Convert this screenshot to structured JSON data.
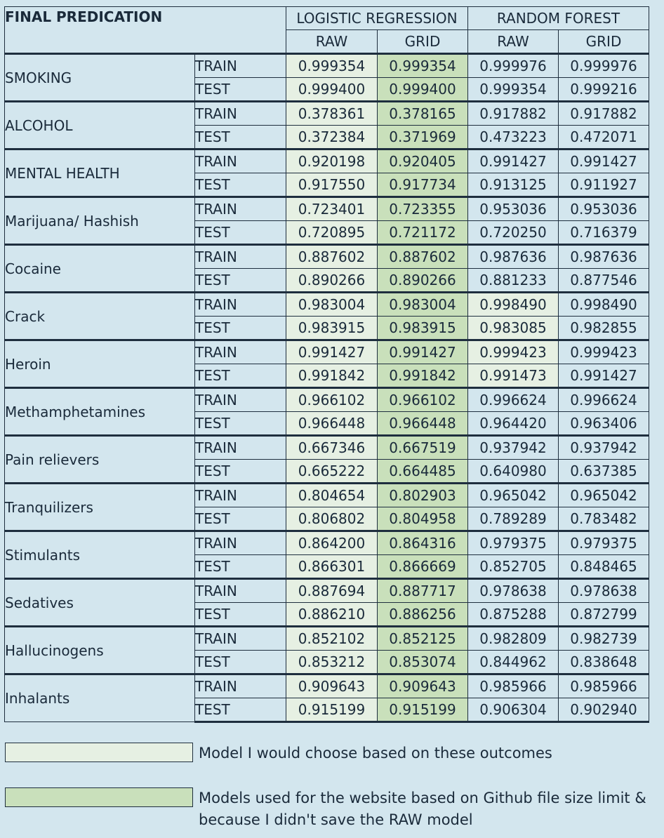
{
  "header": {
    "title": "FINAL PREDICATION",
    "groups": [
      "LOGISTIC REGRESSION",
      "RANDOM FOREST"
    ],
    "subcolumns": [
      "RAW",
      "GRID",
      "RAW",
      "GRID"
    ]
  },
  "rows": [
    {
      "category": "SMOKING",
      "train": {
        "label": "TRAIN",
        "values": [
          "0.999354",
          "0.999354",
          "0.999976",
          "0.999976"
        ]
      },
      "test": {
        "label": "TEST",
        "values": [
          "0.999400",
          "0.999400",
          "0.999354",
          "0.999216"
        ]
      }
    },
    {
      "category": "ALCOHOL",
      "train": {
        "label": "TRAIN",
        "values": [
          "0.378361",
          "0.378165",
          "0.917882",
          "0.917882"
        ]
      },
      "test": {
        "label": "TEST",
        "values": [
          "0.372384",
          "0.371969",
          "0.473223",
          "0.472071"
        ]
      }
    },
    {
      "category": "MENTAL HEALTH",
      "train": {
        "label": "TRAIN",
        "values": [
          "0.920198",
          "0.920405",
          "0.991427",
          "0.991427"
        ]
      },
      "test": {
        "label": "TEST",
        "values": [
          "0.917550",
          "0.917734",
          "0.913125",
          "0.911927"
        ]
      }
    },
    {
      "category": "Marijuana/ Hashish",
      "train": {
        "label": "TRAIN",
        "values": [
          "0.723401",
          "0.723355",
          "0.953036",
          "0.953036"
        ]
      },
      "test": {
        "label": "TEST",
        "values": [
          "0.720895",
          "0.721172",
          "0.720250",
          "0.716379"
        ]
      }
    },
    {
      "category": "Cocaine",
      "train": {
        "label": "TRAIN",
        "values": [
          "0.887602",
          "0.887602",
          "0.987636",
          "0.987636"
        ]
      },
      "test": {
        "label": "TEST",
        "values": [
          "0.890266",
          "0.890266",
          "0.881233",
          "0.877546"
        ]
      }
    },
    {
      "category": "Crack",
      "train": {
        "label": "TRAIN",
        "values": [
          "0.983004",
          "0.983004",
          "0.998490",
          "0.998490"
        ]
      },
      "test": {
        "label": "TEST",
        "values": [
          "0.983915",
          "0.983915",
          "0.983085",
          "0.982855"
        ]
      }
    },
    {
      "category": "Heroin",
      "train": {
        "label": "TRAIN",
        "values": [
          "0.991427",
          "0.991427",
          "0.999423",
          "0.999423"
        ]
      },
      "test": {
        "label": "TEST",
        "values": [
          "0.991842",
          "0.991842",
          "0.991473",
          "0.991427"
        ]
      }
    },
    {
      "category": "Methamphetamines",
      "train": {
        "label": "TRAIN",
        "values": [
          "0.966102",
          "0.966102",
          "0.996624",
          "0.996624"
        ]
      },
      "test": {
        "label": "TEST",
        "values": [
          "0.966448",
          "0.966448",
          "0.964420",
          "0.963406"
        ]
      }
    },
    {
      "category": "Pain relievers",
      "train": {
        "label": "TRAIN",
        "values": [
          "0.667346",
          "0.667519",
          "0.937942",
          "0.937942"
        ]
      },
      "test": {
        "label": "TEST",
        "values": [
          "0.665222",
          "0.664485",
          "0.640980",
          "0.637385"
        ]
      }
    },
    {
      "category": "Tranquilizers",
      "train": {
        "label": "TRAIN",
        "values": [
          "0.804654",
          "0.802903",
          "0.965042",
          "0.965042"
        ]
      },
      "test": {
        "label": "TEST",
        "values": [
          "0.806802",
          "0.804958",
          "0.789289",
          "0.783482"
        ]
      }
    },
    {
      "category": "Stimulants",
      "train": {
        "label": "TRAIN",
        "values": [
          "0.864200",
          "0.864316",
          "0.979375",
          "0.979375"
        ]
      },
      "test": {
        "label": "TEST",
        "values": [
          "0.866301",
          "0.866669",
          "0.852705",
          "0.848465"
        ]
      }
    },
    {
      "category": "Sedatives",
      "train": {
        "label": "TRAIN",
        "values": [
          "0.887694",
          "0.887717",
          "0.978638",
          "0.978638"
        ]
      },
      "test": {
        "label": "TEST",
        "values": [
          "0.886210",
          "0.886256",
          "0.875288",
          "0.872799"
        ]
      }
    },
    {
      "category": "Hallucinogens",
      "train": {
        "label": "TRAIN",
        "values": [
          "0.852102",
          "0.852125",
          "0.982809",
          "0.982739"
        ]
      },
      "test": {
        "label": "TEST",
        "values": [
          "0.853212",
          "0.853074",
          "0.844962",
          "0.838648"
        ]
      }
    },
    {
      "category": "Inhalants",
      "train": {
        "label": "TRAIN",
        "values": [
          "0.909643",
          "0.909643",
          "0.985966",
          "0.985966"
        ]
      },
      "test": {
        "label": "TEST",
        "values": [
          "0.915199",
          "0.915199",
          "0.906304",
          "0.902940"
        ]
      }
    }
  ],
  "highlight_colors": {
    "chosen_model": "#e6f0e3",
    "website_model": "#c9e0bb",
    "background": "#d3e6ee"
  },
  "highlights": {
    "chosen_model_cells": "LOGISTIC REGRESSION RAW (all rows); RANDOM FOREST RAW for Crack and Heroin",
    "website_model_cells": "LOGISTIC REGRESSION GRID (all rows)"
  },
  "legend": [
    {
      "text": "Model I would choose based on these outcomes",
      "color": "#e6f0e3"
    },
    {
      "text": "Models used for the website based on Github file size limit & because I didn't save the RAW model",
      "color": "#c9e0bb"
    }
  ]
}
